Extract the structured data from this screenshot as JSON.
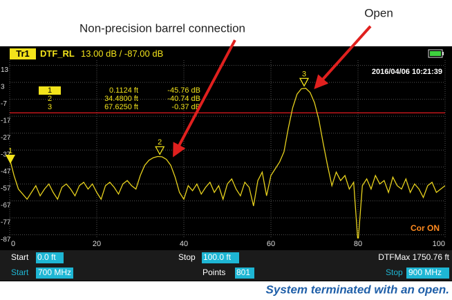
{
  "annotations": {
    "left": "Non-precision barrel connection",
    "right": "Open"
  },
  "caption": "System terminated with an open.",
  "header": {
    "trace": "Tr1",
    "measurement": "DTF_RL",
    "scale": "13.00 dB / -87.00 dB",
    "timestamp": "2016/04/06 10:21:39",
    "status": "Cor ON"
  },
  "footer": {
    "start_distance_label": "Start",
    "start_distance": "0.0 ft",
    "stop_distance_label": "Stop",
    "stop_distance": "100.0 ft",
    "dtfmax": "DTFMax 1750.76 ft",
    "start_freq_label": "Start",
    "start_freq": "700 MHz",
    "points_label": "Points",
    "points": "801",
    "stop_freq_label": "Stop",
    "stop_freq": "900 MHz"
  },
  "chart_data": {
    "type": "line",
    "color": "#e8d21d",
    "grid": true,
    "x": [
      0,
      1,
      2,
      3,
      4,
      5,
      6,
      7,
      8,
      9,
      10,
      11,
      12,
      13,
      14,
      15,
      16,
      17,
      18,
      19,
      20,
      21,
      22,
      23,
      24,
      25,
      26,
      27,
      28,
      29,
      30,
      31,
      32,
      33,
      34,
      35,
      36,
      37,
      38,
      39,
      40,
      41,
      42,
      43,
      44,
      45,
      46,
      47,
      48,
      49,
      50,
      51,
      52,
      53,
      54,
      55,
      56,
      57,
      58,
      59,
      60,
      61,
      62,
      63,
      64,
      65,
      66,
      67,
      68,
      69,
      70,
      71,
      72,
      73,
      74,
      75,
      76,
      77,
      78,
      79,
      80,
      81,
      82,
      83,
      84,
      85,
      86,
      87,
      88,
      89,
      90,
      91,
      92,
      93,
      94,
      95,
      96,
      97,
      98,
      99,
      100
    ],
    "values": [
      -42,
      -52,
      -60,
      -63,
      -66,
      -62,
      -58,
      -64,
      -60,
      -57,
      -62,
      -66,
      -59,
      -57,
      -60,
      -64,
      -58,
      -56,
      -60,
      -57,
      -62,
      -66,
      -58,
      -56,
      -59,
      -63,
      -57,
      -55,
      -58,
      -60,
      -52,
      -46,
      -43,
      -41.5,
      -40.8,
      -41,
      -42.5,
      -46,
      -53,
      -62,
      -66,
      -58,
      -61,
      -57,
      -63,
      -59,
      -56,
      -62,
      -58,
      -66,
      -57,
      -54,
      -60,
      -64,
      -56,
      -59,
      -70,
      -55,
      -50,
      -64,
      -52,
      -48,
      -44,
      -38,
      -24,
      -12,
      -4,
      -0.8,
      -0.5,
      -3,
      -9,
      -19,
      -33,
      -46,
      -58,
      -50,
      -55,
      -52,
      -60,
      -56,
      -92,
      -58,
      -54,
      -60,
      -52,
      -57,
      -55,
      -62,
      -53,
      -58,
      -60,
      -54,
      -62,
      -57,
      -60,
      -65,
      -58,
      -56,
      -62,
      -60,
      -58
    ],
    "xlim": [
      0,
      100
    ],
    "xticks": [
      0,
      20,
      40,
      60,
      80,
      100
    ],
    "ylim": [
      -89.2,
      16.1
    ],
    "yticks": [
      13,
      3,
      -7,
      -17,
      -27,
      -37,
      -47,
      -57,
      -67,
      -77,
      -87
    ],
    "limit_line": -15,
    "limit_color": "#c0161b",
    "markers": [
      {
        "label": "1",
        "x": 0.1124,
        "value": -45.76,
        "x_label": "0.1124 ft",
        "value_label": "-45.76 dB"
      },
      {
        "label": "2",
        "x": 34.48,
        "value": -40.74,
        "x_label": "34.4800 ft",
        "value_label": "-40.74 dB"
      },
      {
        "label": "3",
        "x": 67.625,
        "value": -0.37,
        "x_label": "67.6250 ft",
        "value_label": "-0.37 dB"
      }
    ]
  }
}
